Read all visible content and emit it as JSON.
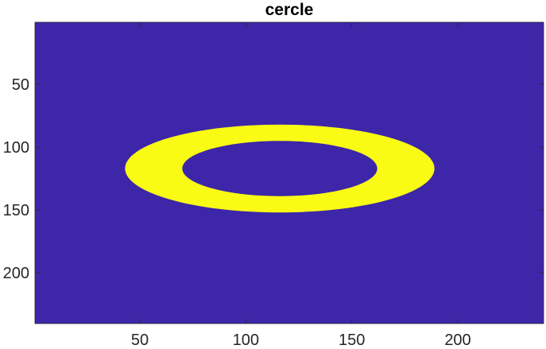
{
  "chart_data": {
    "type": "heatmap",
    "title": "cercle",
    "xlabel": "",
    "ylabel": "",
    "xlim": [
      0.5,
      240.5
    ],
    "ylim": [
      0.5,
      240.5
    ],
    "y_direction": "reverse",
    "x_ticks": [
      50,
      100,
      150,
      200
    ],
    "y_ticks": [
      50,
      100,
      150,
      200
    ],
    "x_tick_labels": [
      "50",
      "100",
      "150",
      "200"
    ],
    "y_tick_labels": [
      "50",
      "100",
      "150",
      "200"
    ],
    "grid": false,
    "legend": "none",
    "colormap": {
      "0": "#3E26A8",
      "1": "#F9FB15"
    },
    "background_value": 0,
    "shape": {
      "kind": "ring",
      "value": 1,
      "center": [
        116,
        117
      ],
      "outer_semi_axes": [
        73,
        35
      ],
      "inner_semi_axes": [
        46,
        22
      ]
    }
  }
}
